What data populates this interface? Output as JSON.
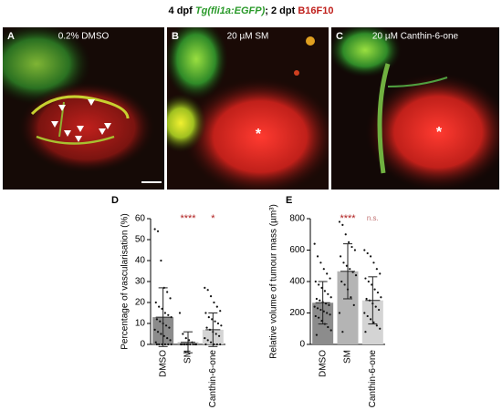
{
  "header": {
    "parts": [
      "4 dpf ",
      "Tg(fli1a:EGFP)",
      "; 2 dpt ",
      "B16F10"
    ]
  },
  "panels": [
    {
      "letter": "A",
      "title": "0.2% DMSO"
    },
    {
      "letter": "B",
      "title": "20 µM SM",
      "marker": "*"
    },
    {
      "letter": "C",
      "title": "20 µM Canthin-6-one",
      "marker": "*"
    }
  ],
  "chart_data": [
    {
      "type": "bar",
      "letter": "D",
      "y_label": "Percentage of vascularisation (%)",
      "categories": [
        "DMSO",
        "SM",
        "Canthin-6-one"
      ],
      "values": [
        13,
        1,
        7
      ],
      "errors": [
        14,
        5,
        8
      ],
      "colors": [
        "#8c8c8c",
        "#b4b4b4",
        "#d4d4d4"
      ],
      "annotations": [
        null,
        "****",
        "*"
      ],
      "points": [
        [
          55,
          54,
          40,
          27,
          25,
          22,
          20,
          18,
          17,
          15,
          14,
          13,
          12,
          11,
          10,
          9,
          8,
          7,
          6,
          5,
          4,
          3,
          2,
          1,
          0,
          0,
          0,
          0,
          0,
          0
        ],
        [
          15,
          5,
          3,
          2,
          1,
          0,
          0,
          0,
          0,
          0,
          0,
          0,
          0,
          0,
          0
        ],
        [
          27,
          26,
          23,
          20,
          18,
          16,
          15,
          13,
          12,
          11,
          10,
          9,
          8,
          7,
          6,
          5,
          4,
          3,
          2,
          1,
          0,
          0,
          0,
          0
        ]
      ],
      "ylim": [
        0,
        60
      ],
      "yticks": [
        0,
        10,
        20,
        30,
        40,
        50,
        60
      ]
    },
    {
      "type": "bar",
      "letter": "E",
      "y_label": "Relative volume of tumour mass (µm³)",
      "categories": [
        "DMSO",
        "SM",
        "Canthin-6-one"
      ],
      "values": [
        265,
        465,
        280
      ],
      "errors": [
        135,
        175,
        150
      ],
      "colors": [
        "#8c8c8c",
        "#b4b4b4",
        "#d4d4d4"
      ],
      "annotations": [
        null,
        "****",
        "n.s."
      ],
      "points": [
        [
          640,
          560,
          520,
          480,
          450,
          420,
          400,
          380,
          360,
          340,
          320,
          300,
          290,
          280,
          270,
          260,
          250,
          240,
          230,
          220,
          210,
          200,
          190,
          180,
          170,
          150,
          130,
          110,
          90,
          60
        ],
        [
          780,
          760,
          700,
          650,
          620,
          600,
          560,
          520,
          500,
          480,
          460,
          440,
          400,
          380,
          350,
          300,
          250,
          200,
          80
        ],
        [
          600,
          580,
          560,
          520,
          480,
          450,
          420,
          400,
          380,
          350,
          330,
          300,
          290,
          280,
          260,
          240,
          220,
          200,
          180,
          160,
          140,
          120,
          100,
          80
        ]
      ],
      "ylim": [
        0,
        800
      ],
      "yticks": [
        0,
        200,
        400,
        600,
        800
      ]
    }
  ]
}
